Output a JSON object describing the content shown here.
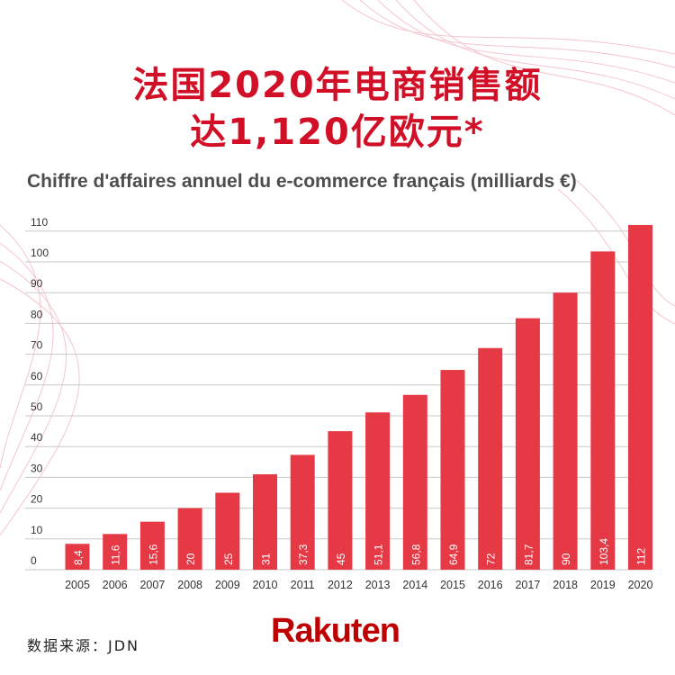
{
  "header": {
    "title_line1": "法国2020年电商销售额",
    "title_line2": "达1,120亿欧元*"
  },
  "chart_data": {
    "type": "bar",
    "title": "Chiffre d'affaires annuel du e-commerce français (milliards €)",
    "categories": [
      "2005",
      "2006",
      "2007",
      "2008",
      "2009",
      "2010",
      "2011",
      "2012",
      "2013",
      "2014",
      "2015",
      "2016",
      "2017",
      "2018",
      "2019",
      "2020"
    ],
    "values": [
      8.4,
      11.6,
      15.6,
      20,
      25,
      31,
      37.3,
      45,
      51.1,
      56.8,
      64.9,
      72,
      81.7,
      90,
      103.4,
      112
    ],
    "value_labels": [
      "8,4",
      "11,6",
      "15,6",
      "20",
      "25",
      "31",
      "37,3",
      "45",
      "51,1",
      "56,8",
      "64,9",
      "72",
      "81,7",
      "90",
      "103,4",
      "112"
    ],
    "yticks": [
      0,
      10,
      20,
      30,
      40,
      50,
      60,
      70,
      80,
      90,
      100,
      110
    ],
    "ylim": [
      0,
      115
    ],
    "grid": true,
    "bar_color": "#e63946"
  },
  "footer": {
    "source": "数据来源：JDN",
    "logo": "Rakuten"
  }
}
